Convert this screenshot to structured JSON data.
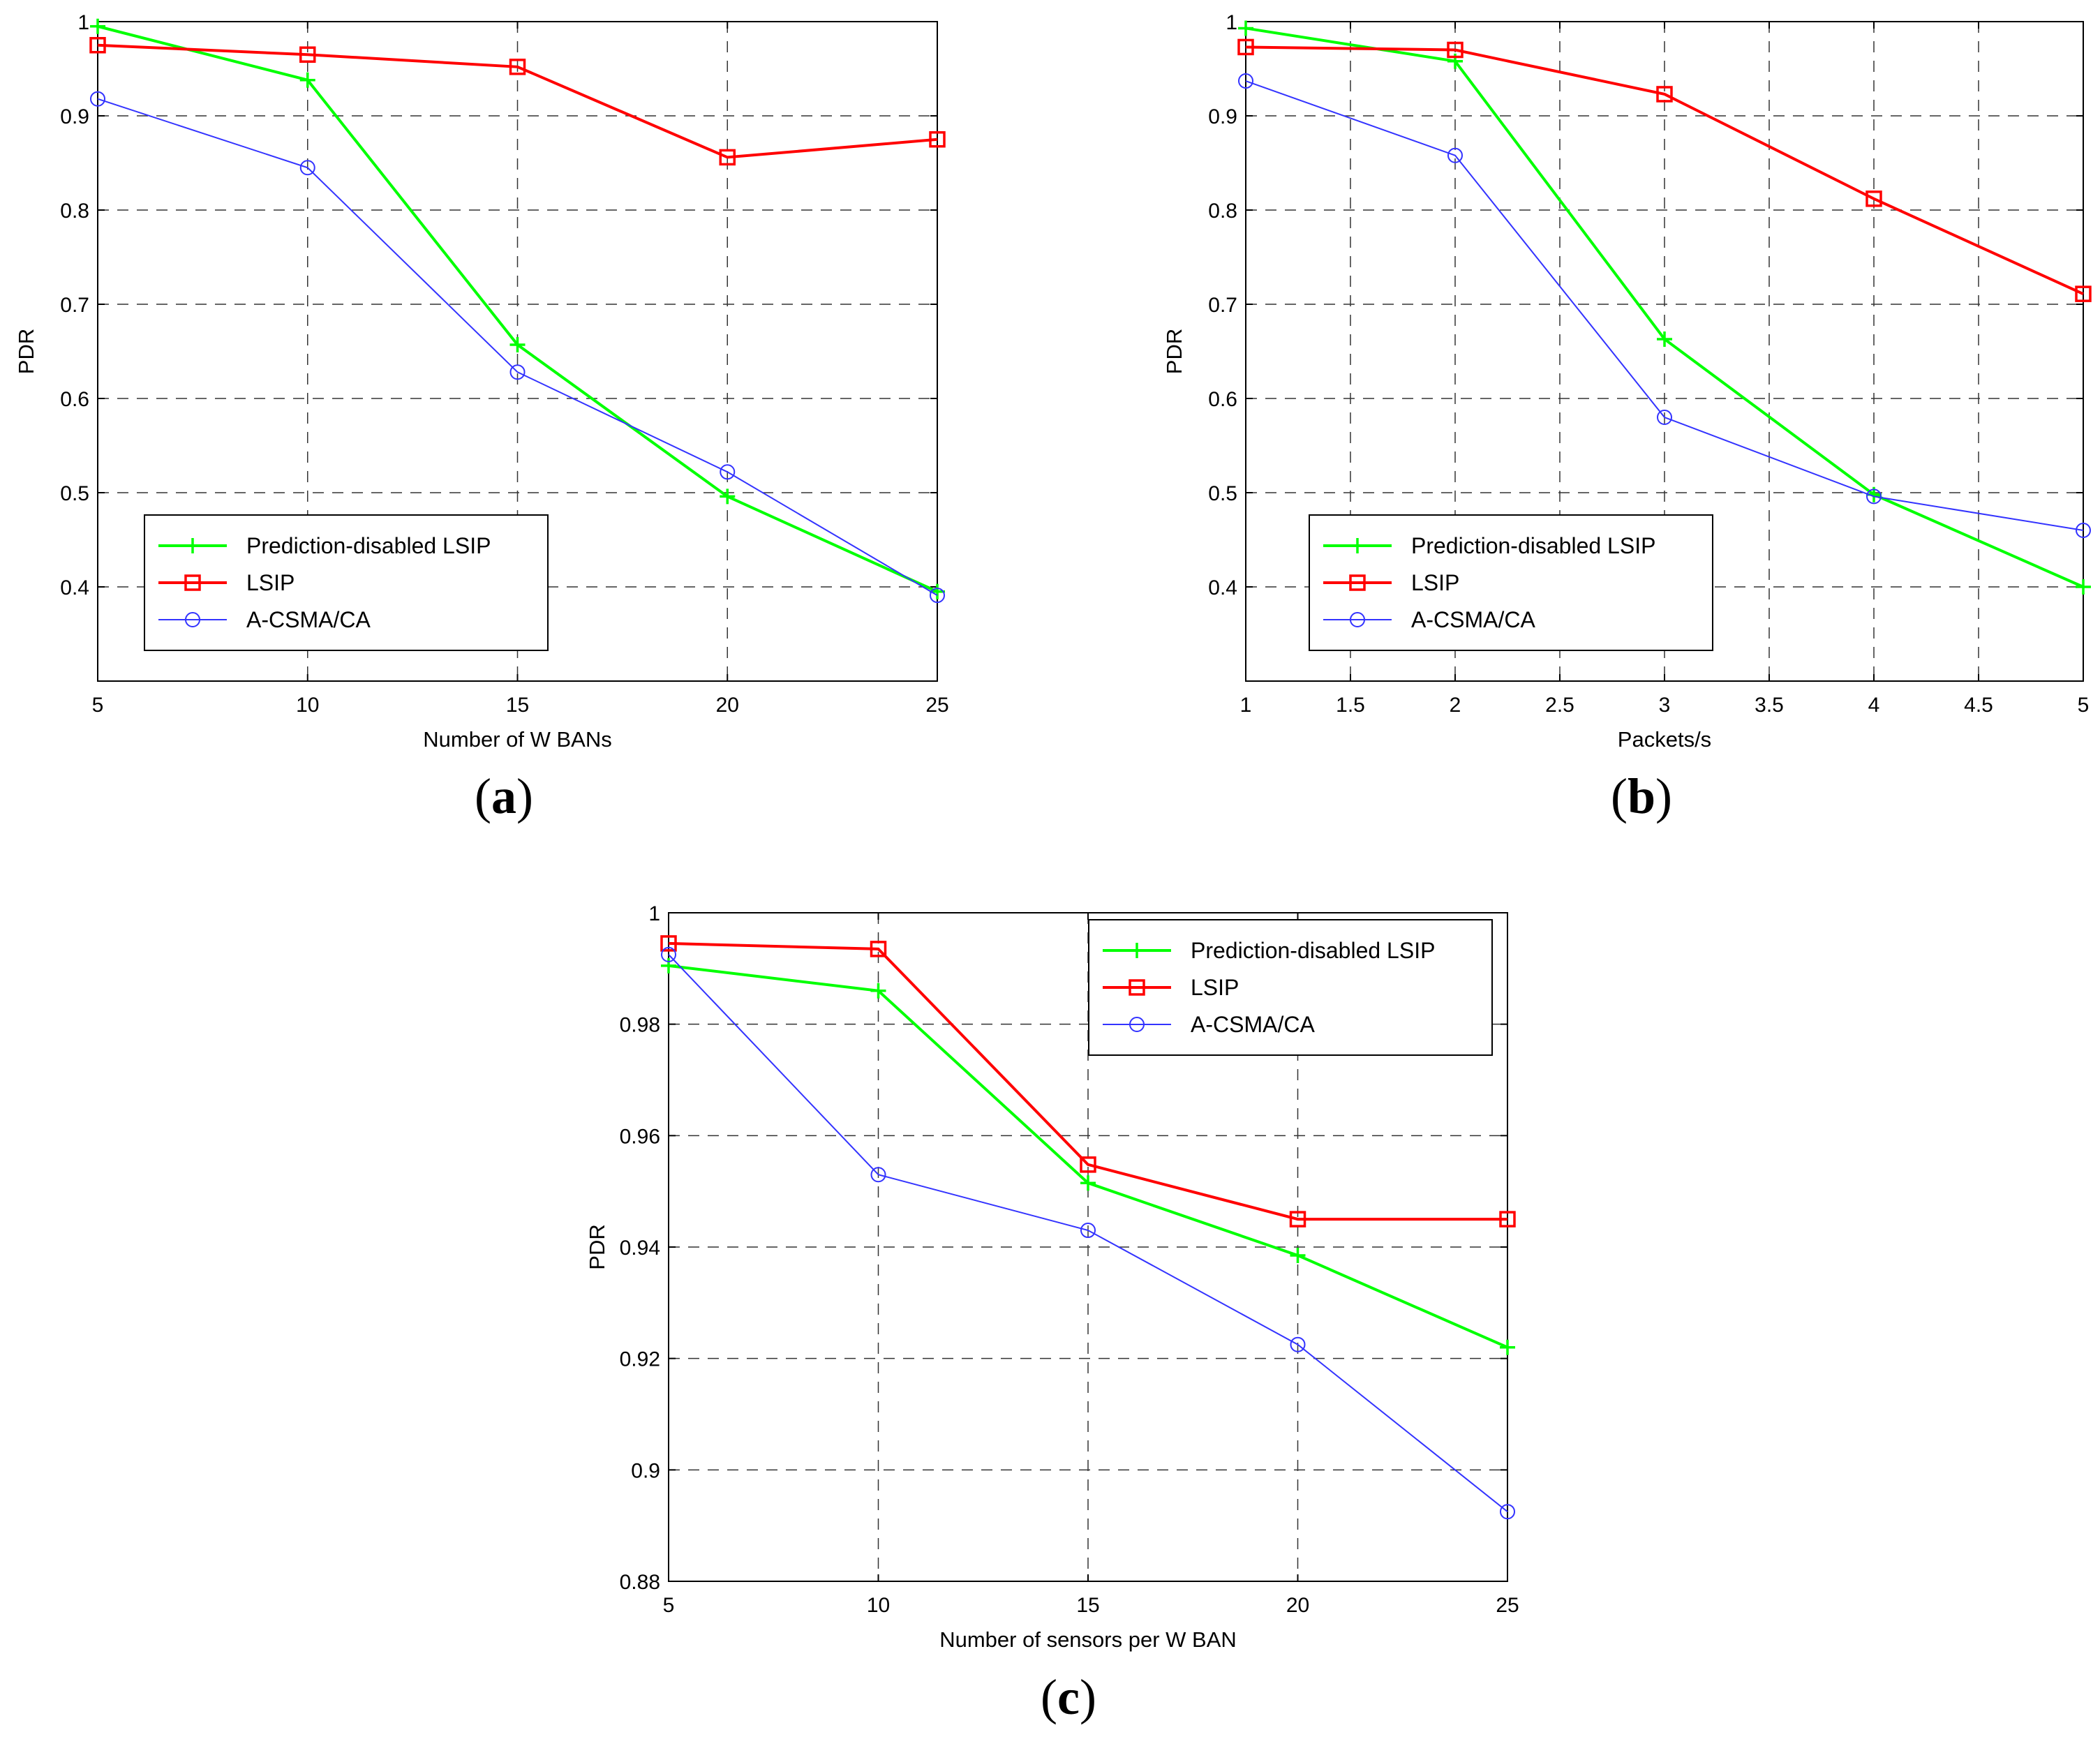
{
  "colors": {
    "prediction_disabled": "#00ff00",
    "lsip": "#ff0000",
    "acsma": "#3333ff",
    "grid": "#333333",
    "axes": "#000000"
  },
  "chart_data": [
    {
      "type": "line",
      "panel_label": "a",
      "xlabel": "Number of W BANs",
      "ylabel": "PDR",
      "xlim": [
        5,
        25
      ],
      "ylim": [
        0.3,
        1
      ],
      "xticks": [
        5,
        10,
        15,
        20,
        25
      ],
      "xtick_labels": [
        "5",
        "10",
        "15",
        "20",
        "25"
      ],
      "yticks": [
        0.4,
        0.5,
        0.6,
        0.7,
        0.8,
        0.9,
        1
      ],
      "ytick_labels": [
        "0.4",
        "0.5",
        "0.6",
        "0.7",
        "0.8",
        "0.9",
        "1"
      ],
      "grid": true,
      "legend_position": "bottom-left",
      "x": [
        5,
        10,
        15,
        20,
        25
      ],
      "series": [
        {
          "name": "Prediction-disabled LSIP",
          "key": "prediction_disabled",
          "marker": "plus",
          "values": [
            0.995,
            0.938,
            0.657,
            0.496,
            0.395
          ]
        },
        {
          "name": "LSIP",
          "key": "lsip",
          "marker": "square",
          "values": [
            0.975,
            0.965,
            0.952,
            0.856,
            0.875
          ]
        },
        {
          "name": "A-CSMA/CA",
          "key": "acsma",
          "marker": "circle",
          "values": [
            0.918,
            0.845,
            0.628,
            0.522,
            0.391
          ]
        }
      ]
    },
    {
      "type": "line",
      "panel_label": "b",
      "xlabel": "Packets/s",
      "ylabel": "PDR",
      "xlim": [
        1,
        5
      ],
      "ylim": [
        0.3,
        1
      ],
      "xticks": [
        1,
        1.5,
        2,
        2.5,
        3,
        3.5,
        4,
        4.5,
        5
      ],
      "xtick_labels": [
        "1",
        "1.5",
        "2",
        "2.5",
        "3",
        "3.5",
        "4",
        "4.5",
        "5"
      ],
      "yticks": [
        0.4,
        0.5,
        0.6,
        0.7,
        0.8,
        0.9,
        1
      ],
      "ytick_labels": [
        "0.4",
        "0.5",
        "0.6",
        "0.7",
        "0.8",
        "0.9",
        "1"
      ],
      "grid": true,
      "legend_position": "bottom-left",
      "x": [
        1,
        2,
        3,
        4,
        5
      ],
      "series": [
        {
          "name": "Prediction-disabled LSIP",
          "key": "prediction_disabled",
          "marker": "plus",
          "values": [
            0.993,
            0.958,
            0.663,
            0.498,
            0.4
          ]
        },
        {
          "name": "LSIP",
          "key": "lsip",
          "marker": "square",
          "values": [
            0.973,
            0.97,
            0.923,
            0.812,
            0.711
          ]
        },
        {
          "name": "A-CSMA/CA",
          "key": "acsma",
          "marker": "circle",
          "values": [
            0.937,
            0.858,
            0.58,
            0.496,
            0.46
          ]
        }
      ]
    },
    {
      "type": "line",
      "panel_label": "c",
      "xlabel": "Number of sensors per W BAN",
      "ylabel": "PDR",
      "xlim": [
        5,
        25
      ],
      "ylim": [
        0.88,
        1
      ],
      "xticks": [
        5,
        10,
        15,
        20,
        25
      ],
      "xtick_labels": [
        "5",
        "10",
        "15",
        "20",
        "25"
      ],
      "yticks": [
        0.88,
        0.9,
        0.92,
        0.94,
        0.96,
        0.98,
        1
      ],
      "ytick_labels": [
        "0.88",
        "0.9",
        "0.92",
        "0.94",
        "0.96",
        "0.98",
        "1"
      ],
      "grid": true,
      "legend_position": "top-right",
      "x": [
        5,
        10,
        15,
        20,
        25
      ],
      "series": [
        {
          "name": "Prediction-disabled LSIP",
          "key": "prediction_disabled",
          "marker": "plus",
          "values": [
            0.9905,
            0.986,
            0.9515,
            0.9385,
            0.922
          ]
        },
        {
          "name": "LSIP",
          "key": "lsip",
          "marker": "square",
          "values": [
            0.9945,
            0.9935,
            0.9548,
            0.945,
            0.945
          ]
        },
        {
          "name": "A-CSMA/CA",
          "key": "acsma",
          "marker": "circle",
          "values": [
            0.9925,
            0.953,
            0.943,
            0.9225,
            0.8925
          ]
        }
      ]
    }
  ]
}
